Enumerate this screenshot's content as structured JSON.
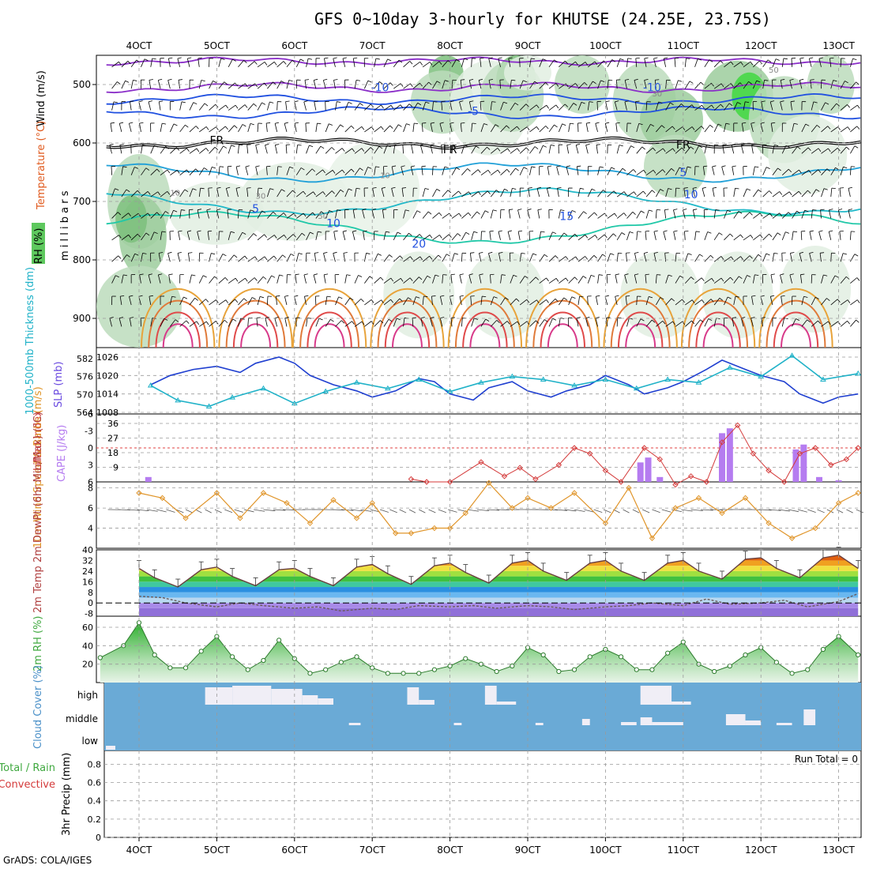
{
  "title": "GFS 0~10day 3-hourly for KHUTSE (24.25E, 23.75S)",
  "credit": "GrADS: COLA/IGES",
  "colors": {
    "rh_fill": "#8fd48f",
    "temp_label": "#e05a1e",
    "wind_label": "#1a1a8c",
    "thickness": "#20b2c8",
    "slp": "#1f3fd0",
    "cape": "#b57cf0",
    "lifted_index": "#d43a3a",
    "wind10m": "#e0952a",
    "rh2m": "#3fa83f",
    "cloud_bg": "#6aaad6",
    "cloud_fill": "#f0eef6"
  },
  "chart_data": [
    {
      "type": "heatmap",
      "panel": "upper-air cross section",
      "ylabel": "m i l l i b a r s",
      "yticks": [
        500,
        600,
        700,
        800,
        900
      ],
      "y_range": [
        950,
        450
      ],
      "x_tick_labels_top": [
        "4OCT",
        "5OCT",
        "6OCT",
        "7OCT",
        "8OCT",
        "9OCT",
        "10OCT",
        "11OCT",
        "12OCT",
        "13OCT"
      ],
      "legend": [
        "RH (%)",
        "Temperature (°C)",
        "Wind (m/s)"
      ],
      "isotherm_labels": [
        {
          "text": "-10",
          "level": 505,
          "day": 7.1
        },
        {
          "text": "-10",
          "level": 505,
          "day": 10.6
        },
        {
          "text": "-5",
          "level": 545,
          "day": 8.3
        },
        {
          "text": "FR",
          "level": 595,
          "day": 5.0
        },
        {
          "text": "FR",
          "level": 611,
          "day": 8.0
        },
        {
          "text": "FR",
          "level": 603,
          "day": 11.0
        },
        {
          "text": "5",
          "level": 650,
          "day": 11.0
        },
        {
          "text": "10",
          "level": 688,
          "day": 11.1
        },
        {
          "text": "5",
          "level": 712,
          "day": 5.5
        },
        {
          "text": "10",
          "level": 737,
          "day": 6.5
        },
        {
          "text": "15",
          "level": 725,
          "day": 9.5
        },
        {
          "text": "20",
          "level": 772,
          "day": 7.6
        }
      ],
      "rh_labels": [
        "10",
        "30",
        "50"
      ]
    },
    {
      "type": "line",
      "panel": "thickness-slp",
      "ylabel_left": "1000-500mb Thickness (dm)",
      "ylabel_right": "SLP (mb)",
      "thickness_ticks": [
        582,
        576,
        570,
        564
      ],
      "slp_ticks": [
        1026,
        1020,
        1014,
        1008
      ],
      "series": [
        {
          "name": "SLP (mb)",
          "x": [
            4.15,
            4.4,
            4.7,
            5.0,
            5.3,
            5.5,
            5.8,
            6.0,
            6.2,
            6.5,
            6.8,
            7.0,
            7.3,
            7.6,
            7.8,
            8.0,
            8.3,
            8.5,
            8.8,
            9.0,
            9.3,
            9.5,
            9.8,
            10.0,
            10.3,
            10.5,
            10.8,
            11.0,
            11.3,
            11.5,
            11.8,
            12.0,
            12.3,
            12.5,
            12.8,
            13.0,
            13.25
          ],
          "values": [
            1017,
            1020,
            1022,
            1023,
            1021,
            1024,
            1026,
            1024,
            1020,
            1017,
            1015,
            1013,
            1015,
            1019,
            1018,
            1014,
            1012,
            1016,
            1018,
            1015,
            1013,
            1015,
            1017,
            1020,
            1017,
            1014,
            1016,
            1018,
            1022,
            1025,
            1022,
            1020,
            1018,
            1014,
            1011,
            1013,
            1014
          ]
        },
        {
          "name": "1000-500mb Thickness (dm)",
          "x": [
            4.15,
            4.5,
            4.9,
            5.2,
            5.6,
            6.0,
            6.4,
            6.8,
            7.2,
            7.6,
            8.0,
            8.4,
            8.8,
            9.2,
            9.6,
            10.0,
            10.4,
            10.8,
            11.2,
            11.6,
            12.0,
            12.4,
            12.8,
            13.25
          ],
          "values": [
            573,
            568,
            566,
            569,
            572,
            567,
            571,
            574,
            572,
            575,
            571,
            574,
            576,
            575,
            573,
            575,
            572,
            575,
            574,
            579,
            576,
            583,
            575,
            577
          ]
        }
      ]
    },
    {
      "type": "bar",
      "panel": "cape-lifted-index",
      "ylabel_left": "Lifted Index",
      "ylabel_right": "CAPE (J/kg)",
      "li_ticks": [
        "-6",
        "-3",
        "0",
        "3",
        "6"
      ],
      "cape_ticks": [
        36,
        27,
        18,
        9
      ],
      "cape_bars": [
        {
          "x": 4.12,
          "value": 3
        },
        {
          "x": 10.45,
          "value": 12
        },
        {
          "x": 10.55,
          "value": 15
        },
        {
          "x": 10.7,
          "value": 3
        },
        {
          "x": 11.5,
          "value": 30
        },
        {
          "x": 11.6,
          "value": 33
        },
        {
          "x": 12.45,
          "value": 20
        },
        {
          "x": 12.55,
          "value": 23
        },
        {
          "x": 12.75,
          "value": 3
        },
        {
          "x": 13.0,
          "value": 1
        }
      ],
      "lifted_index": {
        "x": [
          7.5,
          7.7,
          8.0,
          8.4,
          8.7,
          8.9,
          9.1,
          9.4,
          9.6,
          9.8,
          10.0,
          10.2,
          10.5,
          10.7,
          10.9,
          11.1,
          11.3,
          11.5,
          11.7,
          11.9,
          12.1,
          12.3,
          12.5,
          12.7,
          12.9,
          13.1,
          13.25
        ],
        "values": [
          5.5,
          6,
          6,
          2.5,
          5,
          3.5,
          5.5,
          3,
          0,
          1,
          4,
          6,
          0,
          2,
          6.5,
          5,
          6,
          -1,
          -4,
          1,
          4,
          6,
          1,
          0,
          3,
          2,
          0
        ]
      }
    },
    {
      "type": "line",
      "panel": "10m-wind",
      "ylabel": "10m Wind Speed & Barbs (m/s)",
      "yticks": [
        8,
        6,
        4
      ],
      "series": [
        {
          "name": "10m Wind Speed",
          "x": [
            4.0,
            4.3,
            4.6,
            5.0,
            5.3,
            5.6,
            5.9,
            6.2,
            6.5,
            6.8,
            7.0,
            7.3,
            7.5,
            7.8,
            8.0,
            8.2,
            8.5,
            8.8,
            9.0,
            9.3,
            9.6,
            10.0,
            10.3,
            10.6,
            10.9,
            11.2,
            11.5,
            11.8,
            12.1,
            12.4,
            12.7,
            13.0,
            13.25
          ],
          "values": [
            7.5,
            7,
            5,
            7.5,
            5,
            7.5,
            6.5,
            4.5,
            6.8,
            5,
            6.5,
            3.5,
            3.5,
            4,
            4,
            5.5,
            8.5,
            6,
            7,
            6,
            7.5,
            4.5,
            8,
            3,
            6,
            7,
            5.5,
            7,
            4.5,
            3,
            4,
            6.5,
            7.5
          ]
        }
      ]
    },
    {
      "type": "area",
      "panel": "2m-temperature",
      "ylabel": "2m Temp 2m DewPt (6hr Min/Max) (°C)",
      "yticks": [
        40,
        32,
        24,
        16,
        8,
        0,
        -8
      ],
      "series": [
        {
          "name": "2m Temp",
          "x": [
            4.0,
            4.2,
            4.5,
            4.8,
            5.0,
            5.2,
            5.5,
            5.8,
            6.0,
            6.2,
            6.5,
            6.8,
            7.0,
            7.2,
            7.5,
            7.8,
            8.0,
            8.2,
            8.5,
            8.8,
            9.0,
            9.2,
            9.5,
            9.8,
            10.0,
            10.2,
            10.5,
            10.8,
            11.0,
            11.2,
            11.5,
            11.8,
            12.0,
            12.2,
            12.5,
            12.8,
            13.0,
            13.25
          ],
          "values": [
            26,
            19,
            12,
            25,
            27,
            20,
            13,
            25,
            26,
            20,
            13,
            27,
            29,
            22,
            14,
            28,
            30,
            23,
            15,
            30,
            32,
            24,
            17,
            30,
            32,
            24,
            17,
            30,
            32,
            24,
            18,
            33,
            34,
            26,
            19,
            34,
            36,
            26
          ]
        },
        {
          "name": "2m DewPt",
          "x": [
            4.0,
            4.3,
            4.6,
            5.0,
            5.3,
            5.6,
            6.0,
            6.3,
            6.6,
            7.0,
            7.3,
            7.6,
            8.0,
            8.3,
            8.6,
            9.0,
            9.3,
            9.6,
            10.0,
            10.3,
            10.6,
            11.0,
            11.3,
            11.6,
            12.0,
            12.3,
            12.6,
            13.0,
            13.25
          ],
          "values": [
            5,
            4,
            0,
            -3,
            0,
            -2,
            -4,
            -3,
            -6,
            -4,
            -5,
            -2,
            -3,
            -2,
            -4,
            -2,
            -3,
            -5,
            -3,
            -2,
            0,
            -2,
            3,
            -1,
            0,
            2,
            -3,
            1,
            7
          ]
        }
      ]
    },
    {
      "type": "area",
      "panel": "2m-rh",
      "ylabel": "2m RH (%)",
      "yticks": [
        60,
        40,
        20
      ],
      "series": [
        {
          "name": "2m RH",
          "x": [
            3.5,
            3.8,
            4.0,
            4.2,
            4.4,
            4.6,
            4.8,
            5.0,
            5.2,
            5.4,
            5.6,
            5.8,
            6.0,
            6.2,
            6.4,
            6.6,
            6.8,
            7.0,
            7.2,
            7.4,
            7.6,
            7.8,
            8.0,
            8.2,
            8.4,
            8.6,
            8.8,
            9.0,
            9.2,
            9.4,
            9.6,
            9.8,
            10.0,
            10.2,
            10.4,
            10.6,
            10.8,
            11.0,
            11.2,
            11.4,
            11.6,
            11.8,
            12.0,
            12.2,
            12.4,
            12.6,
            12.8,
            13.0,
            13.25
          ],
          "values": [
            27,
            40,
            65,
            30,
            16,
            16,
            34,
            50,
            28,
            14,
            24,
            46,
            26,
            10,
            14,
            22,
            28,
            16,
            10,
            10,
            10,
            14,
            18,
            26,
            20,
            12,
            18,
            38,
            30,
            12,
            14,
            28,
            36,
            28,
            14,
            14,
            32,
            44,
            20,
            12,
            18,
            30,
            38,
            22,
            10,
            14,
            36,
            50,
            30
          ]
        }
      ]
    },
    {
      "type": "bar",
      "panel": "cloud-cover",
      "ylabel": "Cloud Cover (%)",
      "y_labels": [
        "high",
        "middle",
        "low"
      ]
    },
    {
      "type": "bar",
      "panel": "3hr-precip",
      "ylabel_left": "Total / Rain",
      "ylabel_left2": "Convective",
      "ylabel": "3hr Precip (mm)",
      "yticks": [
        "0.8",
        "0.6",
        "0.4",
        "0.2",
        "0"
      ],
      "annotation": "Run Total = 0",
      "x_tick_labels": [
        "4OCT",
        "5OCT",
        "6OCT",
        "7OCT",
        "8OCT",
        "9OCT",
        "10OCT",
        "11OCT",
        "12OCT",
        "13OCT"
      ]
    }
  ]
}
